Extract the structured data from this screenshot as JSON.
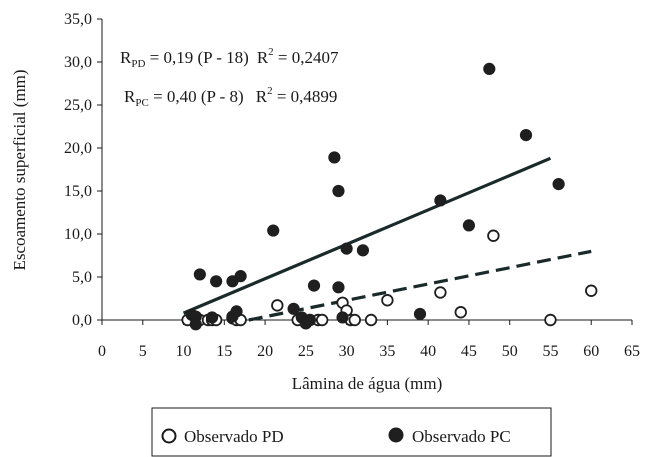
{
  "chart_data": {
    "type": "scatter",
    "xlabel": "Lâmina de água (mm)",
    "ylabel": "Escoamento superficial (mm)",
    "xlim": [
      0,
      65
    ],
    "ylim": [
      0,
      35
    ],
    "x_ticks": [
      "0",
      "5",
      "10",
      "15",
      "20",
      "25",
      "30",
      "35",
      "40",
      "45",
      "50",
      "55",
      "60",
      "65"
    ],
    "y_ticks": [
      "0,0",
      "5,0",
      "10,0",
      "15,0",
      "20,0",
      "25,0",
      "30,0",
      "35,0"
    ],
    "grid": false,
    "legend_position": "bottom",
    "equations": [
      {
        "lhs": "R",
        "sub": "PD",
        "rhs": " = 0,19 (P - 18)",
        "r2_label": "R",
        "r2_sup": "2",
        "r2_value": " = 0,2407"
      },
      {
        "lhs": "R",
        "sub": "PC",
        "rhs": " = 0,40 (P - 8)",
        "r2_label": "R",
        "r2_sup": "2",
        "r2_value": " = 0,4899"
      }
    ],
    "series": [
      {
        "name": "Observado PD",
        "marker": "open-circle",
        "points": [
          [
            10.5,
            0.0
          ],
          [
            11.5,
            0.2
          ],
          [
            12.0,
            0.0
          ],
          [
            13.0,
            0.0
          ],
          [
            13.5,
            0.0
          ],
          [
            14.0,
            0.0
          ],
          [
            16.0,
            0.2
          ],
          [
            16.5,
            0.0
          ],
          [
            17.0,
            0.0
          ],
          [
            21.5,
            1.7
          ],
          [
            24.0,
            0.0
          ],
          [
            25.5,
            0.0
          ],
          [
            26.5,
            0.0
          ],
          [
            27.0,
            0.0
          ],
          [
            29.5,
            2.0
          ],
          [
            30.0,
            1.1
          ],
          [
            30.5,
            0.0
          ],
          [
            31.0,
            0.0
          ],
          [
            33.0,
            0.0
          ],
          [
            35.0,
            2.3
          ],
          [
            41.5,
            3.2
          ],
          [
            44.0,
            0.9
          ],
          [
            48.0,
            9.8
          ],
          [
            55.0,
            0.0
          ],
          [
            60.0,
            3.4
          ]
        ]
      },
      {
        "name": "Observado PC",
        "marker": "filled-circle",
        "points": [
          [
            11.0,
            0.6
          ],
          [
            11.5,
            0.4
          ],
          [
            11.5,
            -0.5
          ],
          [
            12.0,
            5.3
          ],
          [
            13.5,
            0.3
          ],
          [
            14.0,
            4.5
          ],
          [
            16.0,
            4.5
          ],
          [
            16.0,
            0.4
          ],
          [
            16.5,
            1.0
          ],
          [
            17.0,
            5.1
          ],
          [
            21.0,
            10.4
          ],
          [
            23.5,
            1.3
          ],
          [
            24.5,
            0.3
          ],
          [
            25.0,
            -0.4
          ],
          [
            25.5,
            0.0
          ],
          [
            26.0,
            4.0
          ],
          [
            28.5,
            18.9
          ],
          [
            29.0,
            3.8
          ],
          [
            29.0,
            15.0
          ],
          [
            29.5,
            0.3
          ],
          [
            30.0,
            8.3
          ],
          [
            32.0,
            8.1
          ],
          [
            39.0,
            0.7
          ],
          [
            41.5,
            13.9
          ],
          [
            45.0,
            11.0
          ],
          [
            47.5,
            29.2
          ],
          [
            52.0,
            21.5
          ],
          [
            56.0,
            15.8
          ]
        ]
      }
    ],
    "trendlines": [
      {
        "name": "PC",
        "style": "solid",
        "x": [
          10,
          55
        ],
        "y": [
          0.8,
          18.8
        ]
      },
      {
        "name": "PD",
        "style": "dashed",
        "x": [
          18,
          60
        ],
        "y": [
          0.0,
          7.98
        ]
      }
    ]
  }
}
